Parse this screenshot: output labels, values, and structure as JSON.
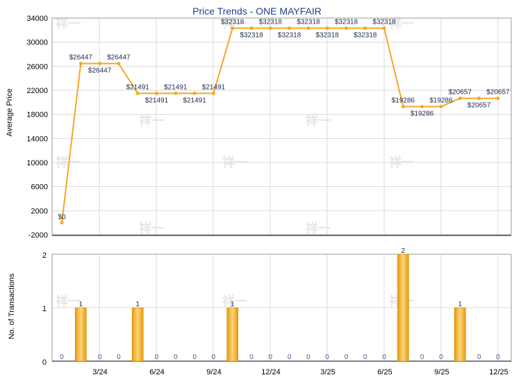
{
  "title": "Price Trends - ONE MAYFAIR",
  "colors": {
    "line": "#f5a623",
    "bar": "#f0a81c",
    "grid": "#d9d9d9",
    "title": "#1f3f8f"
  },
  "chart_data": [
    {
      "type": "line",
      "title": "Price Trends - ONE MAYFAIR",
      "ylabel": "Average Price",
      "ylim": [
        -2000,
        34000
      ],
      "yticks": [
        "34000",
        "30000",
        "26000",
        "22000",
        "18000",
        "14000",
        "10000",
        "6000",
        "2000",
        "-2000"
      ],
      "ytick_values": [
        34000,
        30000,
        26000,
        22000,
        18000,
        14000,
        10000,
        6000,
        2000,
        -2000
      ],
      "x_tick_labels": [
        "3/24",
        "6/24",
        "9/24",
        "12/24",
        "3/25",
        "6/25",
        "9/25",
        "12/25"
      ],
      "grid": true,
      "values": [
        0,
        26447,
        26447,
        26447,
        21491,
        21491,
        21491,
        21491,
        21491,
        32318,
        32318,
        32318,
        32318,
        32318,
        32318,
        32318,
        32318,
        32318,
        19286,
        19286,
        19286,
        20657,
        20657,
        20657
      ],
      "labels": [
        "$0",
        "$26447",
        "$26447",
        "$26447",
        "$21491",
        "$21491",
        "$21491",
        "$21491",
        "$21491",
        "$32318",
        "$32318",
        "$32318",
        "$32318",
        "$32318",
        "$32318",
        "$32318",
        "$32318",
        "$32318",
        "$19286",
        "$19286",
        "$19286",
        "$20657",
        "$20657",
        "$20657"
      ]
    },
    {
      "type": "bar",
      "ylabel": "No. of Transactions",
      "ylim": [
        0,
        2
      ],
      "yticks": [
        "2",
        "1",
        "0"
      ],
      "ytick_values": [
        2,
        1,
        0
      ],
      "x_tick_labels": [
        "3/24",
        "6/24",
        "9/24",
        "12/24",
        "3/25",
        "6/25",
        "9/25",
        "12/25"
      ],
      "grid": true,
      "values": [
        0,
        1,
        0,
        0,
        1,
        0,
        0,
        0,
        0,
        1,
        0,
        0,
        0,
        0,
        0,
        0,
        0,
        0,
        2,
        0,
        0,
        1,
        0,
        0
      ],
      "labels": [
        "0",
        "1",
        "0",
        "0",
        "1",
        "0",
        "0",
        "0",
        "0",
        "1",
        "0",
        "0",
        "0",
        "0",
        "0",
        "0",
        "0",
        "0",
        "2",
        "0",
        "0",
        "1",
        "0",
        "0"
      ]
    }
  ]
}
